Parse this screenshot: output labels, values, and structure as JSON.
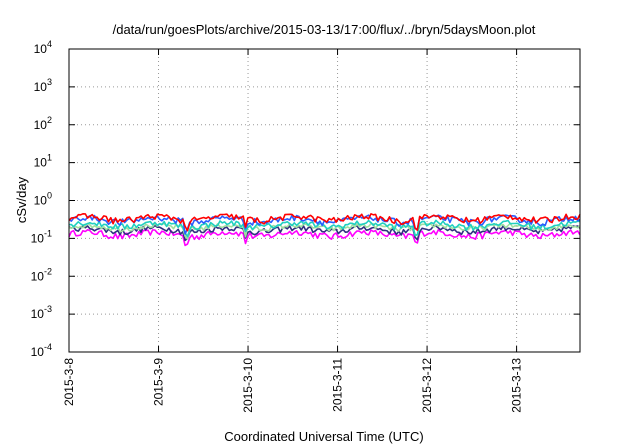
{
  "chart_data": {
    "type": "line",
    "title": "/data/run/goesPlots/archive/2015-03-13/17:00/flux/../bryn/5daysMoon.plot",
    "xlabel": "Coordinated Universal Time (UTC)",
    "ylabel": "cSv/day",
    "yscale": "log",
    "ylim": [
      0.0001,
      10000
    ],
    "yticks": [
      {
        "value": 10000,
        "base": "10",
        "exp": "4"
      },
      {
        "value": 1000,
        "base": "10",
        "exp": "3"
      },
      {
        "value": 100,
        "base": "10",
        "exp": "2"
      },
      {
        "value": 10,
        "base": "10",
        "exp": "1"
      },
      {
        "value": 1,
        "base": "10",
        "exp": "0"
      },
      {
        "value": 0.1,
        "base": "10",
        "exp": "-1"
      },
      {
        "value": 0.01,
        "base": "10",
        "exp": "-2"
      },
      {
        "value": 0.001,
        "base": "10",
        "exp": "-3"
      },
      {
        "value": 0.0001,
        "base": "10",
        "exp": "-4"
      }
    ],
    "xlim": [
      "2015-03-08 00:00",
      "2015-03-13 17:00"
    ],
    "xticks": [
      "2015-3-8",
      "2015-3-9",
      "2015-3-10",
      "2015-3-11",
      "2015-3-12",
      "2015-3-13"
    ],
    "grid": true,
    "legend": "none",
    "series": [
      {
        "color": "#ff0000",
        "base": 0.34,
        "spread": 0.13
      },
      {
        "color": "#2a5cff",
        "base": 0.31,
        "spread": 0.12
      },
      {
        "color": "#20d0c0",
        "base": 0.23,
        "spread": 0.08
      },
      {
        "color": "#a0e0a0",
        "base": 0.2,
        "spread": 0.06
      },
      {
        "color": "#303080",
        "base": 0.17,
        "spread": 0.06
      },
      {
        "color": "#ff00ff",
        "base": 0.13,
        "spread": 0.05
      }
    ]
  }
}
